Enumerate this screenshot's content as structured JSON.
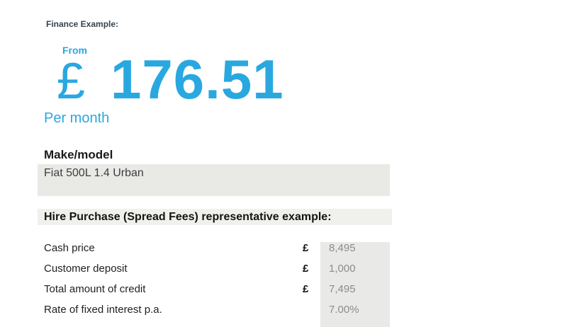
{
  "page": {
    "title": "Finance Example:"
  },
  "price": {
    "prefix": "From",
    "currency_symbol": "£",
    "amount": "176.51",
    "period": "Per month"
  },
  "vehicle": {
    "heading": "Make/model",
    "value": "Fiat 500L 1.4 Urban"
  },
  "example": {
    "heading": "Hire Purchase (Spread Fees) representative example:",
    "rows": [
      {
        "label": "Cash price",
        "currency": "£",
        "value": "8,495"
      },
      {
        "label": "Customer deposit",
        "currency": "£",
        "value": "1,000"
      },
      {
        "label": "Total amount of credit",
        "currency": "£",
        "value": "7,495"
      },
      {
        "label": "Rate of fixed interest p.a.",
        "currency": "",
        "value": "7.00%"
      }
    ]
  },
  "colors": {
    "accent_blue": "#29a8e0",
    "title_navy": "#36434e",
    "box_gray": "#e9e9e6",
    "value_text_gray": "#8c8c8c"
  }
}
